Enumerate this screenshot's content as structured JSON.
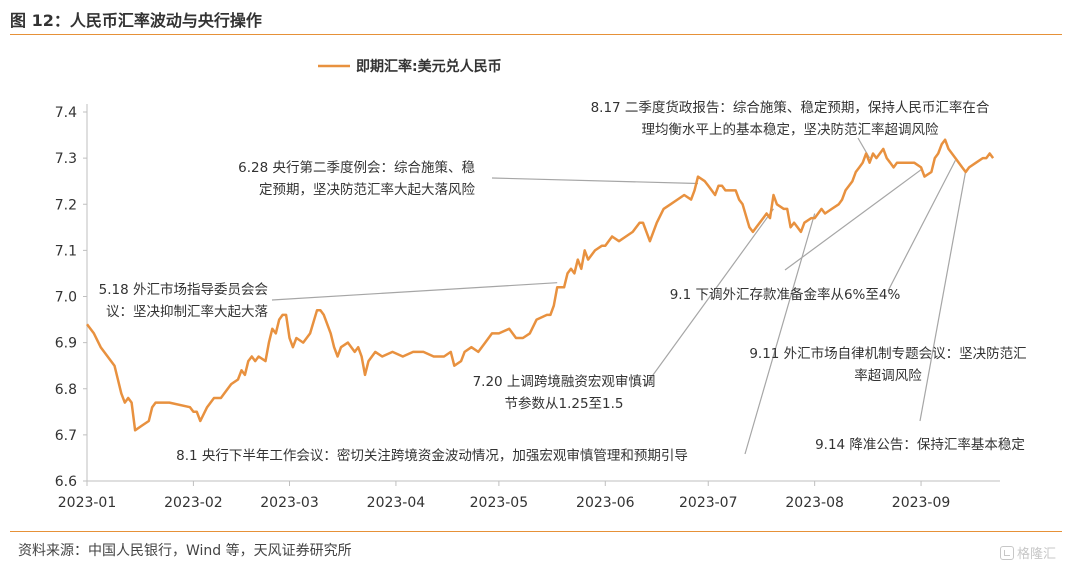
{
  "figure": {
    "title": "图 12：人民币汇率波动与央行操作",
    "source": "资料来源：中国人民银行，Wind 等，天风证券研究所",
    "watermark": "格隆汇",
    "accent_color": "#e69138",
    "line_color": "#e8913f",
    "pointer_color": "#a6a6a6"
  },
  "chart_data": {
    "type": "line",
    "title": "",
    "xlabel": "",
    "ylabel": "",
    "ylim": [
      6.6,
      7.4
    ],
    "yticks": [
      "6.6",
      "6.7",
      "6.8",
      "6.9",
      "7.0",
      "7.1",
      "7.2",
      "7.3",
      "7.4"
    ],
    "xlim": [
      "2023-01-01",
      "2023-09-24"
    ],
    "xticks": [
      "2023-01",
      "2023-02",
      "2023-03",
      "2023-04",
      "2023-05",
      "2023-06",
      "2023-07",
      "2023-08",
      "2023-09"
    ],
    "grid": false,
    "legend_position": "top-left",
    "series": [
      {
        "name": "即期汇率:美元兑人民币",
        "points": [
          [
            "2023-01-01",
            6.94
          ],
          [
            "2023-01-03",
            6.92
          ],
          [
            "2023-01-05",
            6.89
          ],
          [
            "2023-01-07",
            6.87
          ],
          [
            "2023-01-09",
            6.85
          ],
          [
            "2023-01-10",
            6.82
          ],
          [
            "2023-01-11",
            6.79
          ],
          [
            "2023-01-12",
            6.77
          ],
          [
            "2023-01-13",
            6.78
          ],
          [
            "2023-01-14",
            6.77
          ],
          [
            "2023-01-15",
            6.71
          ],
          [
            "2023-01-17",
            6.72
          ],
          [
            "2023-01-19",
            6.73
          ],
          [
            "2023-01-20",
            6.76
          ],
          [
            "2023-01-21",
            6.77
          ],
          [
            "2023-01-23",
            6.77
          ],
          [
            "2023-01-25",
            6.77
          ],
          [
            "2023-01-31",
            6.76
          ],
          [
            "2023-02-01",
            6.75
          ],
          [
            "2023-02-02",
            6.75
          ],
          [
            "2023-02-03",
            6.73
          ],
          [
            "2023-02-05",
            6.76
          ],
          [
            "2023-02-07",
            6.78
          ],
          [
            "2023-02-09",
            6.78
          ],
          [
            "2023-02-10",
            6.79
          ],
          [
            "2023-02-12",
            6.81
          ],
          [
            "2023-02-14",
            6.82
          ],
          [
            "2023-02-15",
            6.84
          ],
          [
            "2023-02-16",
            6.83
          ],
          [
            "2023-02-17",
            6.86
          ],
          [
            "2023-02-18",
            6.87
          ],
          [
            "2023-02-19",
            6.86
          ],
          [
            "2023-02-20",
            6.87
          ],
          [
            "2023-02-22",
            6.86
          ],
          [
            "2023-02-23",
            6.9
          ],
          [
            "2023-02-24",
            6.93
          ],
          [
            "2023-02-25",
            6.92
          ],
          [
            "2023-02-26",
            6.95
          ],
          [
            "2023-02-27",
            6.96
          ],
          [
            "2023-02-28",
            6.96
          ],
          [
            "2023-03-01",
            6.91
          ],
          [
            "2023-03-02",
            6.89
          ],
          [
            "2023-03-03",
            6.91
          ],
          [
            "2023-03-05",
            6.9
          ],
          [
            "2023-03-07",
            6.92
          ],
          [
            "2023-03-09",
            6.97
          ],
          [
            "2023-03-10",
            6.97
          ],
          [
            "2023-03-11",
            6.96
          ],
          [
            "2023-03-13",
            6.92
          ],
          [
            "2023-03-14",
            6.89
          ],
          [
            "2023-03-15",
            6.87
          ],
          [
            "2023-03-16",
            6.89
          ],
          [
            "2023-03-18",
            6.9
          ],
          [
            "2023-03-20",
            6.88
          ],
          [
            "2023-03-21",
            6.89
          ],
          [
            "2023-03-22",
            6.87
          ],
          [
            "2023-03-23",
            6.83
          ],
          [
            "2023-03-24",
            6.86
          ],
          [
            "2023-03-26",
            6.88
          ],
          [
            "2023-03-28",
            6.87
          ],
          [
            "2023-03-31",
            6.88
          ],
          [
            "2023-04-03",
            6.87
          ],
          [
            "2023-04-06",
            6.88
          ],
          [
            "2023-04-09",
            6.88
          ],
          [
            "2023-04-12",
            6.87
          ],
          [
            "2023-04-15",
            6.87
          ],
          [
            "2023-04-17",
            6.88
          ],
          [
            "2023-04-18",
            6.85
          ],
          [
            "2023-04-20",
            6.86
          ],
          [
            "2023-04-21",
            6.88
          ],
          [
            "2023-04-23",
            6.89
          ],
          [
            "2023-04-25",
            6.88
          ],
          [
            "2023-04-27",
            6.9
          ],
          [
            "2023-04-29",
            6.92
          ],
          [
            "2023-05-01",
            6.92
          ],
          [
            "2023-05-04",
            6.93
          ],
          [
            "2023-05-06",
            6.91
          ],
          [
            "2023-05-08",
            6.91
          ],
          [
            "2023-05-10",
            6.92
          ],
          [
            "2023-05-12",
            6.95
          ],
          [
            "2023-05-15",
            6.96
          ],
          [
            "2023-05-16",
            6.96
          ],
          [
            "2023-05-17",
            6.98
          ],
          [
            "2023-05-18",
            7.02
          ],
          [
            "2023-05-20",
            7.02
          ],
          [
            "2023-05-21",
            7.05
          ],
          [
            "2023-05-22",
            7.06
          ],
          [
            "2023-05-23",
            7.05
          ],
          [
            "2023-05-24",
            7.08
          ],
          [
            "2023-05-25",
            7.06
          ],
          [
            "2023-05-26",
            7.1
          ],
          [
            "2023-05-27",
            7.08
          ],
          [
            "2023-05-29",
            7.1
          ],
          [
            "2023-05-31",
            7.11
          ],
          [
            "2023-06-01",
            7.11
          ],
          [
            "2023-06-03",
            7.13
          ],
          [
            "2023-06-05",
            7.12
          ],
          [
            "2023-06-07",
            7.13
          ],
          [
            "2023-06-09",
            7.14
          ],
          [
            "2023-06-11",
            7.16
          ],
          [
            "2023-06-12",
            7.16
          ],
          [
            "2023-06-14",
            7.12
          ],
          [
            "2023-06-16",
            7.16
          ],
          [
            "2023-06-18",
            7.19
          ],
          [
            "2023-06-20",
            7.2
          ],
          [
            "2023-06-22",
            7.21
          ],
          [
            "2023-06-24",
            7.22
          ],
          [
            "2023-06-26",
            7.21
          ],
          [
            "2023-06-27",
            7.23
          ],
          [
            "2023-06-28",
            7.26
          ],
          [
            "2023-06-30",
            7.25
          ],
          [
            "2023-07-01",
            7.24
          ],
          [
            "2023-07-02",
            7.23
          ],
          [
            "2023-07-03",
            7.22
          ],
          [
            "2023-07-04",
            7.24
          ],
          [
            "2023-07-05",
            7.24
          ],
          [
            "2023-07-06",
            7.23
          ],
          [
            "2023-07-07",
            7.23
          ],
          [
            "2023-07-08",
            7.23
          ],
          [
            "2023-07-09",
            7.23
          ],
          [
            "2023-07-10",
            7.21
          ],
          [
            "2023-07-11",
            7.2
          ],
          [
            "2023-07-13",
            7.15
          ],
          [
            "2023-07-14",
            7.14
          ],
          [
            "2023-07-15",
            7.15
          ],
          [
            "2023-07-17",
            7.17
          ],
          [
            "2023-07-18",
            7.18
          ],
          [
            "2023-07-19",
            7.17
          ],
          [
            "2023-07-20",
            7.22
          ],
          [
            "2023-07-21",
            7.2
          ],
          [
            "2023-07-23",
            7.19
          ],
          [
            "2023-07-24",
            7.19
          ],
          [
            "2023-07-25",
            7.15
          ],
          [
            "2023-07-26",
            7.16
          ],
          [
            "2023-07-27",
            7.15
          ],
          [
            "2023-07-28",
            7.14
          ],
          [
            "2023-07-29",
            7.16
          ],
          [
            "2023-07-31",
            7.17
          ],
          [
            "2023-08-01",
            7.17
          ],
          [
            "2023-08-03",
            7.19
          ],
          [
            "2023-08-04",
            7.18
          ],
          [
            "2023-08-06",
            7.19
          ],
          [
            "2023-08-08",
            7.2
          ],
          [
            "2023-08-09",
            7.21
          ],
          [
            "2023-08-10",
            7.23
          ],
          [
            "2023-08-11",
            7.24
          ],
          [
            "2023-08-12",
            7.25
          ],
          [
            "2023-08-13",
            7.27
          ],
          [
            "2023-08-14",
            7.28
          ],
          [
            "2023-08-15",
            7.29
          ],
          [
            "2023-08-16",
            7.31
          ],
          [
            "2023-08-17",
            7.29
          ],
          [
            "2023-08-18",
            7.31
          ],
          [
            "2023-08-19",
            7.3
          ],
          [
            "2023-08-21",
            7.32
          ],
          [
            "2023-08-22",
            7.3
          ],
          [
            "2023-08-23",
            7.29
          ],
          [
            "2023-08-24",
            7.28
          ],
          [
            "2023-08-25",
            7.29
          ],
          [
            "2023-08-28",
            7.29
          ],
          [
            "2023-08-30",
            7.29
          ],
          [
            "2023-09-01",
            7.28
          ],
          [
            "2023-09-02",
            7.26
          ],
          [
            "2023-09-04",
            7.27
          ],
          [
            "2023-09-05",
            7.3
          ],
          [
            "2023-09-06",
            7.31
          ],
          [
            "2023-09-07",
            7.33
          ],
          [
            "2023-09-08",
            7.34
          ],
          [
            "2023-09-09",
            7.32
          ],
          [
            "2023-09-11",
            7.3
          ],
          [
            "2023-09-12",
            7.29
          ],
          [
            "2023-09-13",
            7.28
          ],
          [
            "2023-09-14",
            7.27
          ],
          [
            "2023-09-15",
            7.28
          ],
          [
            "2023-09-17",
            7.29
          ],
          [
            "2023-09-19",
            7.3
          ],
          [
            "2023-09-20",
            7.3
          ],
          [
            "2023-09-21",
            7.31
          ],
          [
            "2023-09-22",
            7.3
          ]
        ]
      }
    ],
    "annotations": [
      {
        "lines": [
          "8.17 二季度货政报告：综合施策、稳定预期，保持人民币汇率在合",
          "理均衡水平上的基本稳定，坚决防范汇率超调风险"
        ],
        "anchor": "middle",
        "point": [
          "2023-08-17",
          7.3
        ]
      },
      {
        "lines": [
          "6.28 央行第二季度例会：综合施策、稳",
          "定预期，坚决防范汇率大起大落风险"
        ],
        "anchor": "end",
        "point": [
          "2023-06-28",
          7.245
        ]
      },
      {
        "lines": [
          "5.18 外汇市场指导委员会会",
          "议：坚决抑制汇率大起大落"
        ],
        "anchor": "end",
        "point": [
          "2023-05-18",
          7.03
        ]
      },
      {
        "lines": [
          "7.20 上调跨境融资宏观审慎调",
          "节参数从1.25至1.5"
        ],
        "anchor": "middle",
        "point": [
          "2023-07-20",
          7.19
        ]
      },
      {
        "lines": [
          "8.1 央行下半年工作会议：密切关注跨境资金波动情况，加强宏观审慎管理和预期引导"
        ],
        "anchor": "middle",
        "point": [
          "2023-08-01",
          7.18
        ]
      },
      {
        "lines": [
          "9.1 下调外汇存款准备金率从6%至4%"
        ],
        "anchor": "middle",
        "point": [
          "2023-09-01",
          7.275
        ]
      },
      {
        "lines": [
          "9.11 外汇市场自律机制专题会议：坚决防范汇",
          "率超调风险"
        ],
        "anchor": "middle",
        "point": [
          "2023-09-11",
          7.295
        ]
      },
      {
        "lines": [
          "9.14 降准公告：保持汇率基本稳定"
        ],
        "anchor": "middle",
        "point": [
          "2023-09-14",
          7.272
        ]
      }
    ]
  }
}
